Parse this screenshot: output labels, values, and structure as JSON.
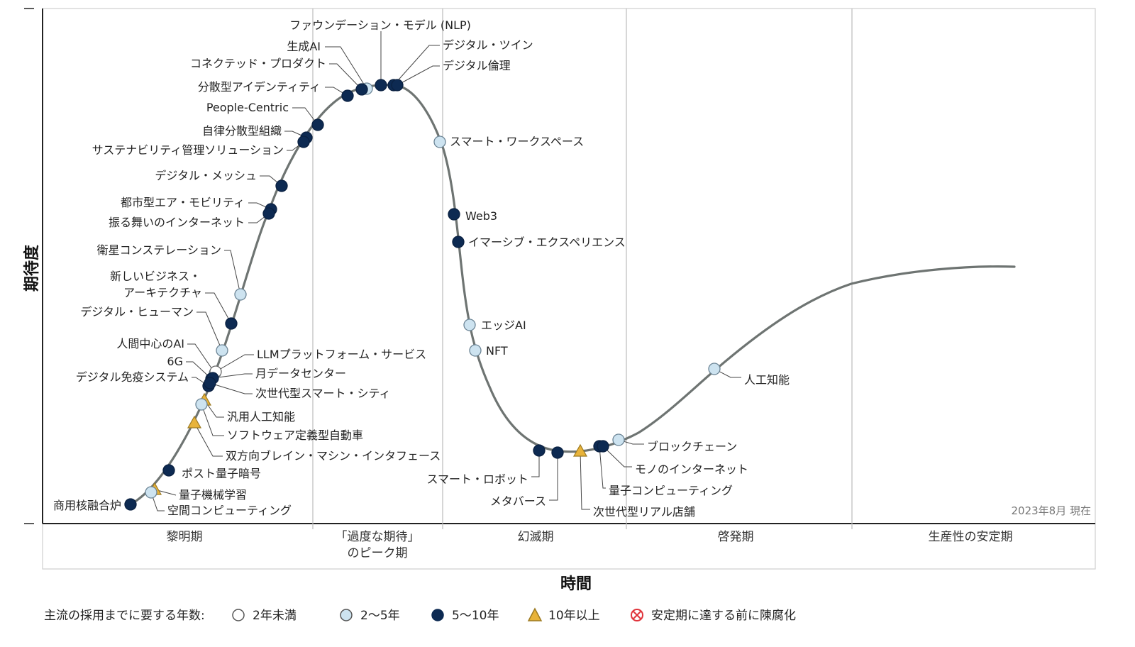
{
  "axis": {
    "y_title": "期待度",
    "x_title": "時間"
  },
  "stamp": "2023年8月 現在",
  "colors": {
    "under2": "#ffffff",
    "y2to5": "#cde3f0",
    "y5to10": "#0d2a52",
    "over10": "#e8b33a",
    "obsolete": "#e0343b",
    "curve": "#6e7472"
  },
  "phases": [
    "黎明期",
    "「過度な期待」",
    "のピーク期",
    "幻滅期",
    "啓発期",
    "生産性の安定期"
  ],
  "legend": {
    "title": "主流の採用までに要する年数:",
    "items": [
      {
        "key": "under2",
        "label": "2年未満"
      },
      {
        "key": "y2to5",
        "label": "2～5年"
      },
      {
        "key": "y5to10",
        "label": "5～10年"
      },
      {
        "key": "over10",
        "label": "10年以上"
      },
      {
        "key": "obsolete",
        "label": "安定期に達する前に陳腐化"
      }
    ]
  },
  "technologies": [
    {
      "name": "ファウンデーション・モデル (NLP)",
      "category": "y5to10"
    },
    {
      "name": "生成AI",
      "category": "y2to5"
    },
    {
      "name": "コネクテッド・プロダクト",
      "category": "y5to10"
    },
    {
      "name": "分散型アイデンティティ",
      "category": "y5to10"
    },
    {
      "name": "People-Centric",
      "category": "y5to10"
    },
    {
      "name": "自律分散型組織",
      "category": "y5to10"
    },
    {
      "name": "サステナビリティ管理ソリューション",
      "category": "y5to10"
    },
    {
      "name": "デジタル・メッシュ",
      "category": "y5to10"
    },
    {
      "name": "都市型エア・モビリティ",
      "category": "y5to10"
    },
    {
      "name": "振る舞いのインターネット",
      "category": "y5to10"
    },
    {
      "name": "衛星コンステレーション",
      "category": "y2to5"
    },
    {
      "name": "新しいビジネス・",
      "category": "y5to10"
    },
    {
      "name": "アーキテクチャ",
      "category": "y5to10"
    },
    {
      "name": "デジタル・ヒューマン",
      "category": "y2to5"
    },
    {
      "name": "人間中心のAI",
      "category": "y2to5"
    },
    {
      "name": "6G",
      "category": "y5to10"
    },
    {
      "name": "デジタル免疫システム",
      "category": "y5to10"
    },
    {
      "name": "LLMプラットフォーム・サービス",
      "category": "under2"
    },
    {
      "name": "月データセンター",
      "category": "y5to10"
    },
    {
      "name": "次世代型スマート・シティ",
      "category": "y5to10"
    },
    {
      "name": "汎用人工知能",
      "category": "over10"
    },
    {
      "name": "ソフトウェア定義型自動車",
      "category": "y2to5"
    },
    {
      "name": "双方向ブレイン・マシン・インタフェース",
      "category": "over10"
    },
    {
      "name": "ポスト量子暗号",
      "category": "y5to10"
    },
    {
      "name": "量子機械学習",
      "category": "over10"
    },
    {
      "name": "空間コンピューティング",
      "category": "y2to5"
    },
    {
      "name": "商用核融合炉",
      "category": "y5to10"
    },
    {
      "name": "デジタル・ツイン",
      "category": "y5to10"
    },
    {
      "name": "デジタル倫理",
      "category": "y5to10"
    },
    {
      "name": "スマート・ワークスペース",
      "category": "y2to5"
    },
    {
      "name": "Web3",
      "category": "y5to10"
    },
    {
      "name": "イマーシブ・エクスペリエンス",
      "category": "y5to10"
    },
    {
      "name": "エッジAI",
      "category": "y2to5"
    },
    {
      "name": "NFT",
      "category": "y2to5"
    },
    {
      "name": "スマート・ロボット",
      "category": "y5to10"
    },
    {
      "name": "メタバース",
      "category": "y5to10"
    },
    {
      "name": "次世代型リアル店舗",
      "category": "over10"
    },
    {
      "name": "量子コンピューティング",
      "category": "y5to10"
    },
    {
      "name": "モノのインターネット",
      "category": "y5to10"
    },
    {
      "name": "ブロックチェーン",
      "category": "y2to5"
    },
    {
      "name": "人工知能",
      "category": "y2to5"
    }
  ]
}
